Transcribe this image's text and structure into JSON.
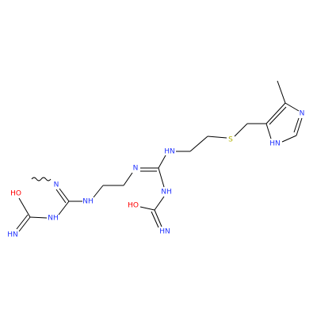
{
  "nodes": [
    {
      "label": "N"
    },
    {
      "label": "HO"
    },
    {
      "label": "NH"
    },
    {
      "label": "HN"
    },
    {
      "label": "NH"
    },
    {
      "label": "N"
    },
    {
      "label": "HN"
    },
    {
      "label": "NH"
    },
    {
      "label": "HO"
    },
    {
      "label": "HN"
    },
    {
      "label": "S"
    },
    {
      "label": "N"
    },
    {
      "label": "HN"
    }
  ]
}
